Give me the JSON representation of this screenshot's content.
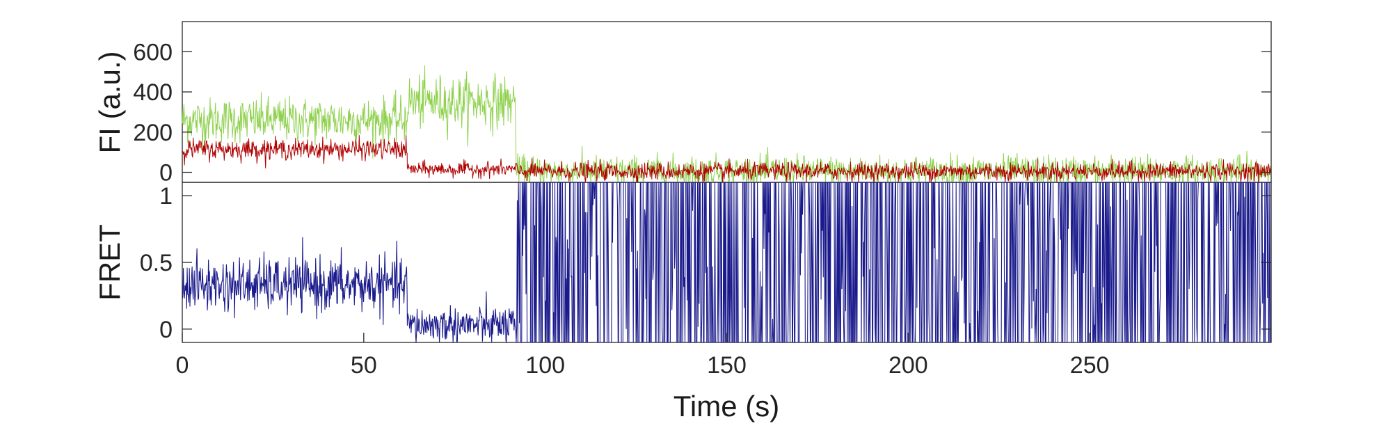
{
  "chart_data": [
    {
      "type": "line",
      "panel": "top",
      "ylabel": "FI (a.u.)",
      "xlim": [
        0,
        300
      ],
      "ylim": [
        -50,
        750
      ],
      "yticks": [
        0,
        200,
        400,
        600
      ],
      "ytick_labels": [
        "0",
        "200",
        "400",
        "600"
      ],
      "series": [
        {
          "color": "#8fd14f",
          "segments": [
            {
              "x_start": 0,
              "x_end": 62,
              "mean": 260,
              "noise": 55
            },
            {
              "x_start": 62,
              "x_end": 92,
              "mean": 350,
              "noise": 65
            },
            {
              "x_start": 92,
              "x_end": 300,
              "mean": 5,
              "noise": 38
            }
          ]
        },
        {
          "color": "#b00000",
          "segments": [
            {
              "x_start": 0,
              "x_end": 62,
              "mean": 115,
              "noise": 25
            },
            {
              "x_start": 62,
              "x_end": 92,
              "mean": 15,
              "noise": 18
            },
            {
              "x_start": 92,
              "x_end": 300,
              "mean": 5,
              "noise": 22
            }
          ]
        }
      ]
    },
    {
      "type": "line",
      "panel": "bottom",
      "ylabel": "FRET",
      "xlabel": "Time (s)",
      "xlim": [
        0,
        300
      ],
      "ylim": [
        -0.1,
        1.1
      ],
      "yticks": [
        0,
        0.5,
        1
      ],
      "ytick_labels": [
        "0",
        "0.5",
        "1"
      ],
      "xticks": [
        0,
        50,
        100,
        150,
        200,
        250
      ],
      "xtick_labels": [
        "0",
        "50",
        "100",
        "150",
        "200",
        "250"
      ],
      "series": [
        {
          "color": "#1a1a8c",
          "segments": [
            {
              "x_start": 0,
              "x_end": 62,
              "mean": 0.33,
              "noise": 0.1
            },
            {
              "x_start": 62,
              "x_end": 92,
              "mean": 0.03,
              "noise": 0.07
            },
            {
              "x_start": 92,
              "x_end": 300,
              "mean": 0.5,
              "noise": 0.6
            }
          ]
        }
      ]
    }
  ]
}
